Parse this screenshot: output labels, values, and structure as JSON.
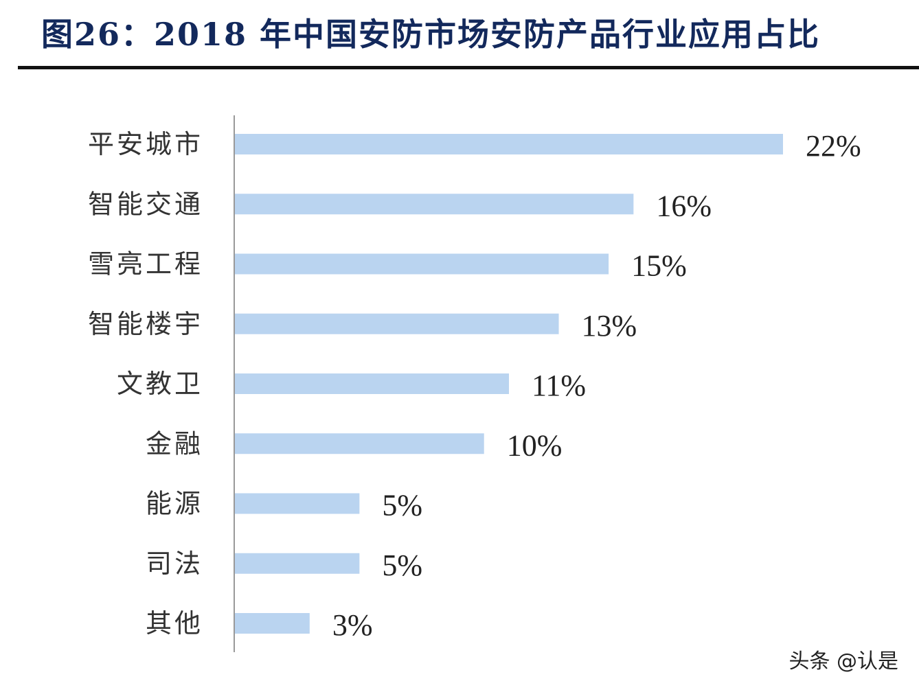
{
  "chart_data": {
    "type": "bar",
    "orientation": "horizontal",
    "title": "图26：2018 年中国安防市场安防产品行业应用占比",
    "categories": [
      "平安城市",
      "智能交通",
      "雪亮工程",
      "智能楼宇",
      "文教卫",
      "金融",
      "能源",
      "司法",
      "其他"
    ],
    "values": [
      22,
      16,
      15,
      13,
      11,
      10,
      5,
      5,
      3
    ],
    "labels": [
      "22%",
      "16%",
      "15%",
      "13%",
      "11%",
      "10%",
      "5%",
      "5%",
      "3%"
    ],
    "unit": "%",
    "xlim": [
      0,
      22
    ],
    "grid": false,
    "legend": "none",
    "bar_color": "#bad4f0",
    "title_color": "#13295c"
  },
  "watermark": "头条 @认是"
}
